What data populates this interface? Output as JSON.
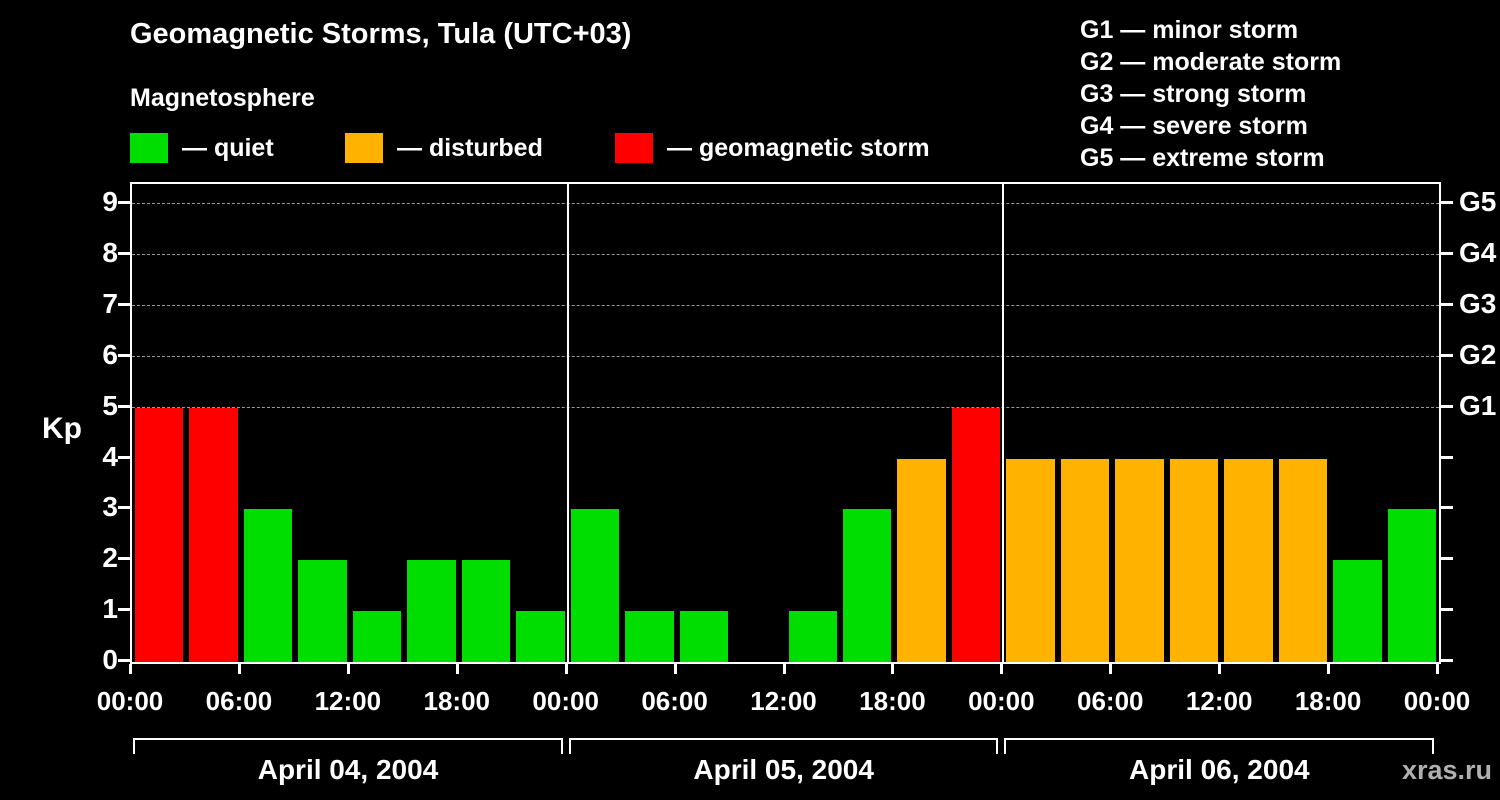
{
  "header": {
    "title": "Geomagnetic Storms, Tula (UTC+03)"
  },
  "legend": {
    "title": "Magnetosphere",
    "items": [
      {
        "key": "quiet",
        "label": "— quiet",
        "color": "#00dd00"
      },
      {
        "key": "disturbed",
        "label": "— disturbed",
        "color": "#ffb300"
      },
      {
        "key": "storm",
        "label": "— geomagnetic storm",
        "color": "#ff0000"
      }
    ]
  },
  "storm_scale": [
    {
      "label": "G1 — minor storm"
    },
    {
      "label": "G2 — moderate storm"
    },
    {
      "label": "G3 — strong storm"
    },
    {
      "label": "G4 — severe storm"
    },
    {
      "label": "G5 — extreme storm"
    }
  ],
  "watermark": "xras.ru",
  "chart_data": {
    "type": "bar",
    "title": "Geomagnetic Storms, Tula (UTC+03)",
    "ylabel": "Kp",
    "ylim": [
      0,
      9
    ],
    "y_display_max": 9.4,
    "yticks": [
      0,
      1,
      2,
      3,
      4,
      5,
      6,
      7,
      8,
      9
    ],
    "gridlines_kp": [
      5,
      6,
      7,
      8,
      9
    ],
    "right_axis_labels": [
      {
        "kp": 5,
        "label": "G1"
      },
      {
        "kp": 6,
        "label": "G2"
      },
      {
        "kp": 7,
        "label": "G3"
      },
      {
        "kp": 8,
        "label": "G4"
      },
      {
        "kp": 9,
        "label": "G5"
      }
    ],
    "x_interval_hours": 3,
    "x_tick_labels": [
      "00:00",
      "06:00",
      "12:00",
      "18:00",
      "00:00",
      "06:00",
      "12:00",
      "18:00",
      "00:00",
      "06:00",
      "12:00",
      "18:00",
      "00:00"
    ],
    "palette": {
      "green": "#00dd00",
      "orange": "#ffb300",
      "red": "#ff0000"
    },
    "days": [
      {
        "date": "April 04, 2004",
        "values": [
          5,
          5,
          3,
          2,
          1,
          2,
          2,
          1
        ],
        "colors": [
          "red",
          "red",
          "green",
          "green",
          "green",
          "green",
          "green",
          "green"
        ]
      },
      {
        "date": "April 05, 2004",
        "values": [
          3,
          1,
          1,
          0,
          1,
          3,
          4,
          5
        ],
        "colors": [
          "green",
          "green",
          "green",
          "green",
          "green",
          "green",
          "orange",
          "red"
        ]
      },
      {
        "date": "April 06, 2004",
        "values": [
          4,
          4,
          4,
          4,
          4,
          4,
          2,
          3
        ],
        "colors": [
          "orange",
          "orange",
          "orange",
          "orange",
          "orange",
          "orange",
          "green",
          "green"
        ]
      }
    ]
  }
}
